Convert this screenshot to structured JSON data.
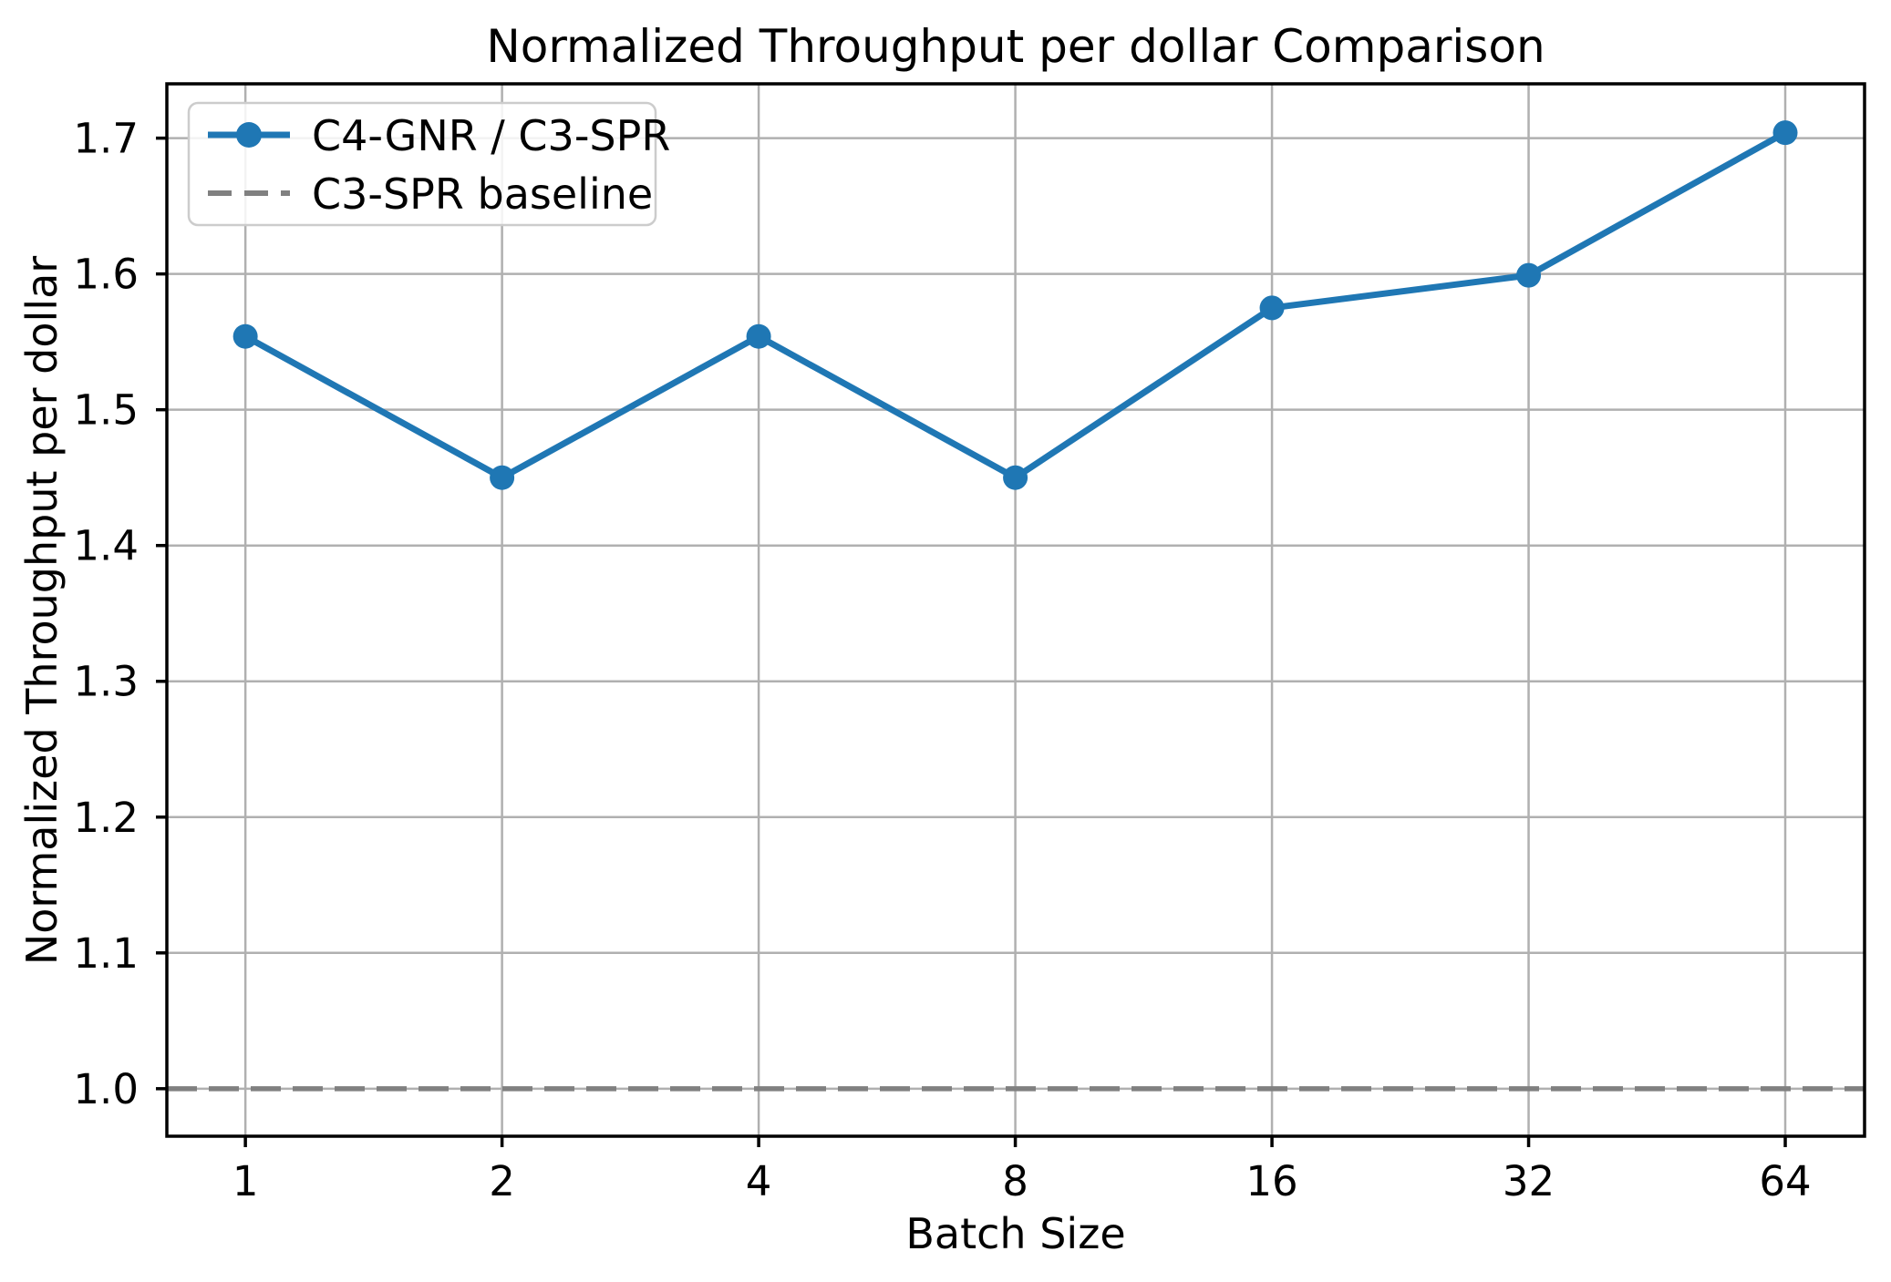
{
  "chart_data": {
    "type": "line",
    "title": "Normalized Throughput per dollar Comparison",
    "xlabel": "Batch Size",
    "ylabel": "Normalized Throughput per dollar",
    "xscale": "log2",
    "categories": [
      1,
      2,
      4,
      8,
      16,
      32,
      64
    ],
    "xtick_labels": [
      "1",
      "2",
      "4",
      "8",
      "16",
      "32",
      "64"
    ],
    "series": [
      {
        "name": "C4-GNR / C3-SPR",
        "values": [
          1.554,
          1.45,
          1.554,
          1.45,
          1.575,
          1.599,
          1.704
        ],
        "color": "#1f77b4",
        "marker": "circle",
        "style": "solid"
      }
    ],
    "baseline": {
      "name": "C3-SPR baseline",
      "value": 1.0,
      "color": "#808080",
      "style": "dashed"
    },
    "yticks": [
      1.0,
      1.1,
      1.2,
      1.3,
      1.4,
      1.5,
      1.6,
      1.7
    ],
    "ytick_decimals": 1,
    "ylim": [
      0.965,
      1.74
    ],
    "xlim_log2": [
      -0.306,
      6.309
    ],
    "grid": true,
    "grid_color": "#b0b0b0",
    "spine_color": "#000000",
    "background": "#ffffff",
    "legend": {
      "position": "upper left",
      "entries": [
        "C4-GNR / C3-SPR",
        "C3-SPR baseline"
      ]
    }
  }
}
